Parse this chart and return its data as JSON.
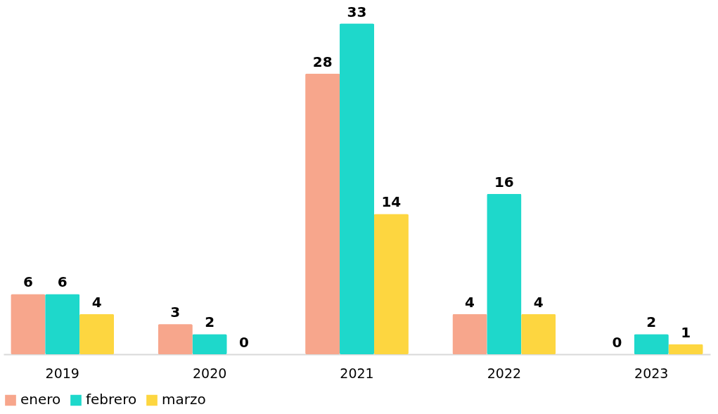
{
  "chart_data": {
    "type": "bar",
    "categories": [
      "2019",
      "2020",
      "2021",
      "2022",
      "2023"
    ],
    "series": [
      {
        "name": "enero",
        "color": "#f7a68c",
        "values": [
          6,
          3,
          28,
          4,
          0
        ]
      },
      {
        "name": "febrero",
        "color": "#1ed8cb",
        "values": [
          6,
          2,
          33,
          16,
          2
        ]
      },
      {
        "name": "marzo",
        "color": "#fdd640",
        "values": [
          4,
          0,
          14,
          4,
          1
        ]
      }
    ],
    "data_labels": true,
    "legend": "bottom",
    "grid": false
  }
}
